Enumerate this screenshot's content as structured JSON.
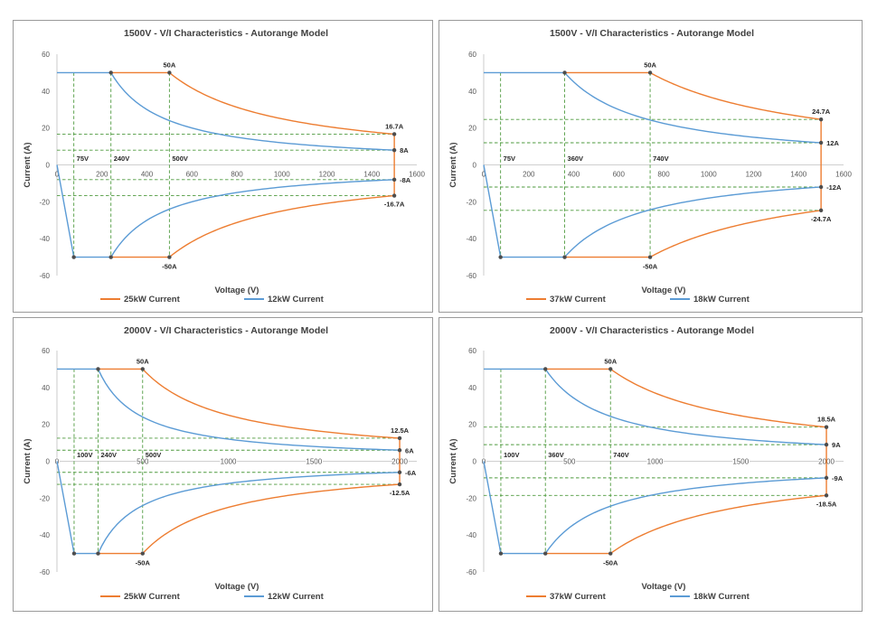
{
  "chart_data": [
    {
      "type": "line",
      "title": "1500V - V/I Characteristics - Autorange Model",
      "xlabel": "Voltage (V)",
      "ylabel": "Current (A)",
      "xlim": [
        0,
        1600
      ],
      "ylim": [
        -60,
        60
      ],
      "xticks": [
        0,
        200,
        400,
        600,
        800,
        1000,
        1200,
        1400,
        1600
      ],
      "yticks": [
        -60,
        -40,
        -20,
        0,
        20,
        40,
        60
      ],
      "grid": false,
      "legend_position": "bottom",
      "power_high_w": 25000,
      "power_low_w": 12000,
      "vmax": 1500,
      "knee_v": 75,
      "imax": 50,
      "series": [
        {
          "name": "25kW Current",
          "color": "#ED7D31",
          "corner_v": 500
        },
        {
          "name": "12kW Current",
          "color": "#5B9BD5",
          "corner_v": 240
        }
      ],
      "voltage_labels": [
        "75V",
        "240V",
        "500V"
      ],
      "annotations": {
        "top": "50A",
        "bottom": "-50A",
        "end_hi_pos": "16.7A",
        "end_lo_pos": "8A",
        "end_lo_neg": "-8A",
        "end_hi_neg": "-16.7A"
      }
    },
    {
      "type": "line",
      "title": "1500V - V/I Characteristics - Autorange Model",
      "xlabel": "Voltage (V)",
      "ylabel": "Current (A)",
      "xlim": [
        0,
        1600
      ],
      "ylim": [
        -60,
        60
      ],
      "xticks": [
        0,
        200,
        400,
        600,
        800,
        1000,
        1200,
        1400,
        1600
      ],
      "yticks": [
        -60,
        -40,
        -20,
        0,
        20,
        40,
        60
      ],
      "grid": false,
      "legend_position": "bottom",
      "power_high_w": 37000,
      "power_low_w": 18000,
      "vmax": 1500,
      "knee_v": 75,
      "imax": 50,
      "series": [
        {
          "name": "37kW Current",
          "color": "#ED7D31",
          "corner_v": 740
        },
        {
          "name": "18kW Current",
          "color": "#5B9BD5",
          "corner_v": 360
        }
      ],
      "voltage_labels": [
        "75V",
        "360V",
        "740V"
      ],
      "annotations": {
        "top": "50A",
        "bottom": "-50A",
        "end_hi_pos": "24.7A",
        "end_lo_pos": "12A",
        "end_lo_neg": "-12A",
        "end_hi_neg": "-24.7A"
      }
    },
    {
      "type": "line",
      "title": "2000V - V/I Characteristics - Autorange Model",
      "xlabel": "Voltage (V)",
      "ylabel": "Current (A)",
      "xlim": [
        0,
        2100
      ],
      "ylim": [
        -60,
        60
      ],
      "xticks": [
        0,
        500,
        1000,
        1500,
        2000
      ],
      "yticks": [
        -60,
        -40,
        -20,
        0,
        20,
        40,
        60
      ],
      "grid": false,
      "legend_position": "bottom",
      "power_high_w": 25000,
      "power_low_w": 12000,
      "vmax": 2000,
      "knee_v": 100,
      "imax": 50,
      "series": [
        {
          "name": "25kW Current",
          "color": "#ED7D31",
          "corner_v": 500
        },
        {
          "name": "12kW Current",
          "color": "#5B9BD5",
          "corner_v": 240
        }
      ],
      "voltage_labels": [
        "100V",
        "240V",
        "500V"
      ],
      "annotations": {
        "top": "50A",
        "bottom": "-50A",
        "end_hi_pos": "12.5A",
        "end_lo_pos": "6A",
        "end_lo_neg": "-6A",
        "end_hi_neg": "-12.5A"
      }
    },
    {
      "type": "line",
      "title": "2000V - V/I Characteristics - Autorange Model",
      "xlabel": "Voltage (V)",
      "ylabel": "Current (A)",
      "xlim": [
        0,
        2100
      ],
      "ylim": [
        -60,
        60
      ],
      "xticks": [
        0,
        500,
        1000,
        1500,
        2000
      ],
      "yticks": [
        -60,
        -40,
        -20,
        0,
        20,
        40,
        60
      ],
      "grid": false,
      "legend_position": "bottom",
      "power_high_w": 37000,
      "power_low_w": 18000,
      "vmax": 2000,
      "knee_v": 100,
      "imax": 50,
      "series": [
        {
          "name": "37kW Current",
          "color": "#ED7D31",
          "corner_v": 740
        },
        {
          "name": "18kW Current",
          "color": "#5B9BD5",
          "corner_v": 360
        }
      ],
      "voltage_labels": [
        "100V",
        "360V",
        "740V"
      ],
      "annotations": {
        "top": "50A",
        "bottom": "-50A",
        "end_hi_pos": "18.5A",
        "end_lo_pos": "9A",
        "end_lo_neg": "-9A",
        "end_hi_neg": "-18.5A"
      }
    }
  ]
}
